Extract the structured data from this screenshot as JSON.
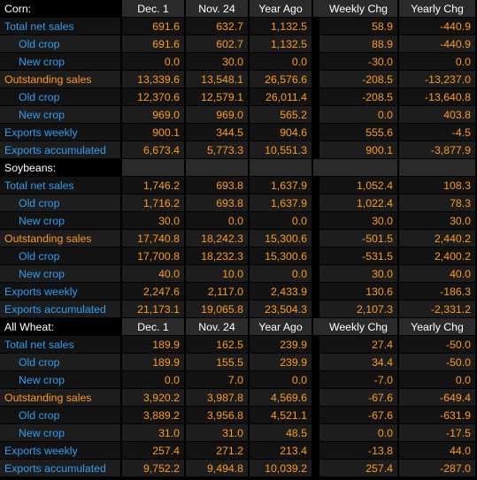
{
  "columns": [
    "Dec. 1",
    "Nov. 24",
    "Year Ago",
    "Weekly Chg",
    "Yearly Chg"
  ],
  "sections": [
    {
      "title": "Corn:",
      "show_columns": true,
      "rows": [
        {
          "label": "Total net sales",
          "style": "blue",
          "indent": false,
          "values": [
            "691.6",
            "632.7",
            "1,132.5",
            "58.9",
            "-440.9"
          ]
        },
        {
          "label": "Old crop",
          "style": "blue",
          "indent": true,
          "values": [
            "691.6",
            "602.7",
            "1,132.5",
            "88.9",
            "-440.9"
          ]
        },
        {
          "label": "New crop",
          "style": "blue",
          "indent": true,
          "values": [
            "0.0",
            "30.0",
            "0.0",
            "-30.0",
            "0.0"
          ]
        },
        {
          "label": "Outstanding sales",
          "style": "orange",
          "indent": false,
          "values": [
            "13,339.6",
            "13,548.1",
            "26,576.6",
            "-208.5",
            "-13,237.0"
          ]
        },
        {
          "label": "Old crop",
          "style": "blue",
          "indent": true,
          "values": [
            "12,370.6",
            "12,579.1",
            "26,011.4",
            "-208.5",
            "-13,640.8"
          ]
        },
        {
          "label": "New crop",
          "style": "blue",
          "indent": true,
          "values": [
            "969.0",
            "969.0",
            "565.2",
            "0.0",
            "403.8"
          ]
        },
        {
          "label": "Exports weekly",
          "style": "blue",
          "indent": false,
          "values": [
            "900.1",
            "344.5",
            "904.6",
            "555.6",
            "-4.5"
          ]
        },
        {
          "label": "Exports accumulated",
          "style": "blue",
          "indent": false,
          "values": [
            "6,673.4",
            "5,773.3",
            "10,551.3",
            "900.1",
            "-3,877.9"
          ]
        }
      ]
    },
    {
      "title": "Soybeans:",
      "show_columns": false,
      "rows": [
        {
          "label": "Total net sales",
          "style": "blue",
          "indent": false,
          "values": [
            "1,746.2",
            "693.8",
            "1,637.9",
            "1,052.4",
            "108.3"
          ]
        },
        {
          "label": "Old crop",
          "style": "blue",
          "indent": true,
          "values": [
            "1,716.2",
            "693.8",
            "1,637.9",
            "1,022.4",
            "78.3"
          ]
        },
        {
          "label": "New crop",
          "style": "blue",
          "indent": true,
          "values": [
            "30.0",
            "0.0",
            "0.0",
            "30.0",
            "30.0"
          ]
        },
        {
          "label": "Outstanding sales",
          "style": "orange",
          "indent": false,
          "values": [
            "17,740.8",
            "18,242.3",
            "15,300.6",
            "-501.5",
            "2,440.2"
          ]
        },
        {
          "label": "Old crop",
          "style": "blue",
          "indent": true,
          "values": [
            "17,700.8",
            "18,232.3",
            "15,300.6",
            "-531.5",
            "2,400.2"
          ]
        },
        {
          "label": "New crop",
          "style": "blue",
          "indent": true,
          "values": [
            "40.0",
            "10.0",
            "0.0",
            "30.0",
            "40.0"
          ]
        },
        {
          "label": "Exports weekly",
          "style": "blue",
          "indent": false,
          "values": [
            "2,247.6",
            "2,117.0",
            "2,433.9",
            "130.6",
            "-186.3"
          ]
        },
        {
          "label": "Exports accumulated",
          "style": "blue",
          "indent": false,
          "values": [
            "21,173.1",
            "19,065.8",
            "23,504.3",
            "2,107.3",
            "-2,331.2"
          ]
        }
      ]
    },
    {
      "title": "All Wheat:",
      "show_columns": true,
      "rows": [
        {
          "label": "Total net sales",
          "style": "blue",
          "indent": false,
          "values": [
            "189.9",
            "162.5",
            "239.9",
            "27.4",
            "-50.0"
          ]
        },
        {
          "label": "Old crop",
          "style": "blue",
          "indent": true,
          "values": [
            "189.9",
            "155.5",
            "239.9",
            "34.4",
            "-50.0"
          ]
        },
        {
          "label": "New crop",
          "style": "blue",
          "indent": true,
          "values": [
            "0.0",
            "7.0",
            "0.0",
            "-7.0",
            "0.0"
          ]
        },
        {
          "label": "Outstanding sales",
          "style": "orange",
          "indent": false,
          "values": [
            "3,920.2",
            "3,987.8",
            "4,569.6",
            "-67.6",
            "-649.4"
          ]
        },
        {
          "label": "Old crop",
          "style": "blue",
          "indent": true,
          "values": [
            "3,889.2",
            "3,956.8",
            "4,521.1",
            "-67.6",
            "-631.9"
          ]
        },
        {
          "label": "New crop",
          "style": "blue",
          "indent": true,
          "values": [
            "31.0",
            "31.0",
            "48.5",
            "0.0",
            "-17.5"
          ]
        },
        {
          "label": "Exports weekly",
          "style": "blue",
          "indent": false,
          "values": [
            "257.4",
            "271.2",
            "213.4",
            "-13.8",
            "44.0"
          ]
        },
        {
          "label": "Exports accumulated",
          "style": "blue",
          "indent": false,
          "values": [
            "9,752.2",
            "9,494.8",
            "10,039.2",
            "257.4",
            "-287.0"
          ]
        }
      ]
    }
  ],
  "colors": {
    "background": "#000000",
    "label_blue": "#2f9df0",
    "label_orange": "#ff9a1a",
    "value_orange": "#ff9a1a",
    "header_text": "#ffffff",
    "header_bg": "#2a2a2a"
  }
}
